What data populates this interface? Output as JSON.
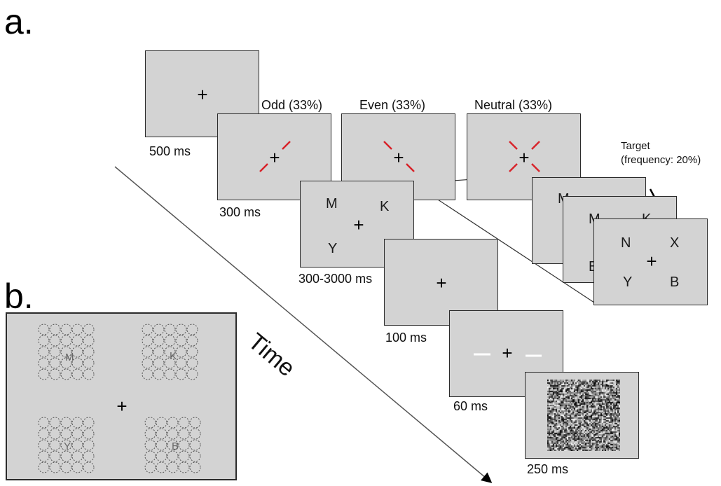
{
  "panel_labels": {
    "a": "a.",
    "b": "b."
  },
  "fixation": "+",
  "cue_conditions": [
    {
      "label": "Odd (33%)",
      "cue": "red-diagonal-odd"
    },
    {
      "label": "Even (33%)",
      "cue": "red-diagonal-even"
    },
    {
      "label": "Neutral (33%)",
      "cue": "red-x-neutral"
    }
  ],
  "durations": {
    "fixation": "500 ms",
    "cue": "300 ms",
    "search": "300-3000 ms",
    "blank": "100 ms",
    "probe": "60 ms",
    "mask": "250 ms"
  },
  "search_letters": {
    "top_left": "M",
    "top_right": "K",
    "bottom_left": "Y"
  },
  "target": {
    "label": "Target",
    "frequency": "(frequency: 20%)",
    "stack_back_letters": [
      "M",
      "M",
      "K",
      "B"
    ],
    "letters": {
      "top_left": "N",
      "top_right": "X",
      "bottom_left": "Y",
      "bottom_right": "B"
    }
  },
  "time_label": "Time",
  "panel_b": {
    "letters": [
      "M",
      "K",
      "Y",
      "B"
    ]
  },
  "colors": {
    "frame_fill": "#d3d3d3",
    "cue_red": "#d8232a",
    "probe_white": "#ffffff"
  }
}
